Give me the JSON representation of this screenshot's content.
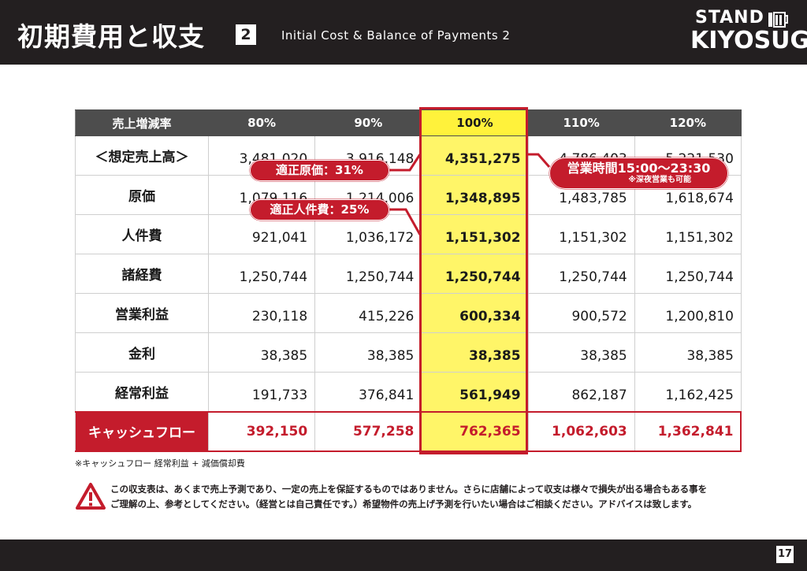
{
  "header": {
    "title": "初期費用と収支",
    "badge": "2",
    "subtitle": "Initial Cost & Balance of Payments 2",
    "logo_top": "STAND",
    "logo_bottom": "KIYOSUGU"
  },
  "table": {
    "headers": [
      "売上増減率",
      "80%",
      "90%",
      "100%",
      "110%",
      "120%"
    ],
    "rows": [
      {
        "label": "＜想定売上高＞",
        "values": [
          "3,481,020",
          "3,916,148",
          "4,351,275",
          "4,786,403",
          "5,221,530"
        ]
      },
      {
        "label": "原価",
        "values": [
          "1,079,116",
          "1,214,006",
          "1,348,895",
          "1,483,785",
          "1,618,674"
        ]
      },
      {
        "label": "人件費",
        "values": [
          "921,041",
          "1,036,172",
          "1,151,302",
          "1,151,302",
          "1,151,302"
        ]
      },
      {
        "label": "諸経費",
        "values": [
          "1,250,744",
          "1,250,744",
          "1,250,744",
          "1,250,744",
          "1,250,744"
        ]
      },
      {
        "label": "営業利益",
        "values": [
          "230,118",
          "415,226",
          "600,334",
          "900,572",
          "1,200,810"
        ]
      },
      {
        "label": "金利",
        "values": [
          "38,385",
          "38,385",
          "38,385",
          "38,385",
          "38,385"
        ]
      },
      {
        "label": "経常利益",
        "values": [
          "191,733",
          "376,841",
          "561,949",
          "862,187",
          "1,162,425"
        ]
      }
    ],
    "cashflow": {
      "label": "キャッシュフロー",
      "values": [
        "392,150",
        "577,258",
        "762,365",
        "1,062,603",
        "1,362,841"
      ]
    }
  },
  "callouts": {
    "cost_rate": "適正原価：31%",
    "labor_rate": "適正人件費：25%",
    "hours": "営業時間15:00〜23:30",
    "hours_note": "※深夜営業も可能"
  },
  "notes": {
    "cashflow_note": "※キャッシュフロー 経常利益 + 減価償却費",
    "disclaimer_line1": "この収支表は、あくまで売上予測であり、一定の売上を保証するものではありません。さらに店舗によって収支は様々で損失が出る場合もある事を",
    "disclaimer_line2": "ご理解の上、参考としてください。（経営とは自己責任です。）希望物件の売上げ予測を行いたい場合はご相談ください。アドバイスは致します。"
  },
  "footer": {
    "page_number": "17"
  },
  "colors": {
    "dark": "#231f20",
    "accent_red": "#c41c2c",
    "highlight_yellow": "#fff568",
    "header_gray": "#4d4d4d"
  },
  "icons": {
    "warning": "warning-triangle-icon",
    "logo_mark": "beer-glass-icon"
  }
}
